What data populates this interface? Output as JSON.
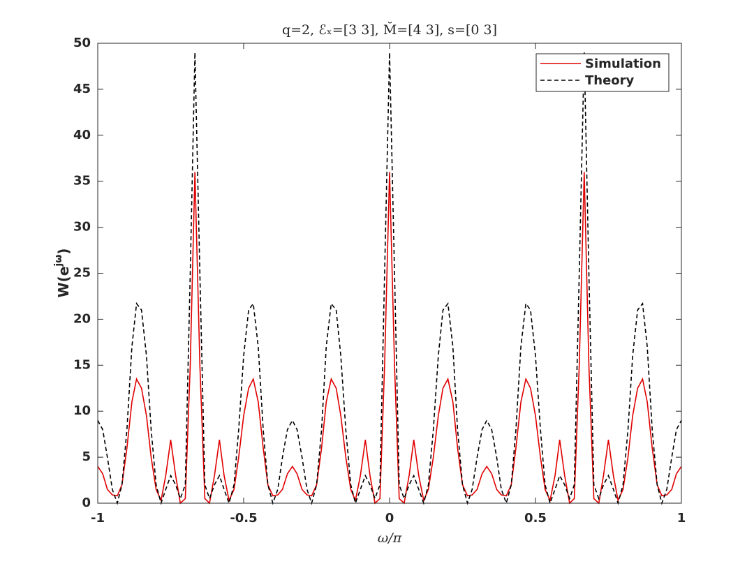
{
  "chart_data": {
    "type": "line",
    "title": "q=2, ℰₓ=[3 3], M̆=[4 3], s=[0 3]",
    "xlabel": "ω/π",
    "ylabel": {
      "base": "W(e",
      "sup": "jω",
      "close": ")"
    },
    "x": [
      -1,
      -0.983,
      -0.967,
      -0.95,
      -0.933,
      -0.917,
      -0.9,
      -0.883,
      -0.867,
      -0.85,
      -0.833,
      -0.817,
      -0.8,
      -0.783,
      -0.767,
      -0.75,
      -0.733,
      -0.717,
      -0.7,
      -0.683,
      -0.667,
      -0.65,
      -0.633,
      -0.617,
      -0.6,
      -0.583,
      -0.567,
      -0.55,
      -0.533,
      -0.517,
      -0.5,
      -0.483,
      -0.467,
      -0.45,
      -0.433,
      -0.417,
      -0.4,
      -0.383,
      -0.367,
      -0.35,
      -0.333,
      -0.317,
      -0.3,
      -0.283,
      -0.267,
      -0.25,
      -0.233,
      -0.217,
      -0.2,
      -0.183,
      -0.167,
      -0.15,
      -0.133,
      -0.117,
      -0.1,
      -0.083,
      -0.067,
      -0.05,
      -0.033,
      -0.017,
      0,
      0.017,
      0.033,
      0.05,
      0.067,
      0.083,
      0.1,
      0.117,
      0.133,
      0.15,
      0.167,
      0.183,
      0.2,
      0.217,
      0.233,
      0.25,
      0.267,
      0.283,
      0.3,
      0.317,
      0.333,
      0.35,
      0.367,
      0.383,
      0.4,
      0.417,
      0.433,
      0.45,
      0.467,
      0.483,
      0.5,
      0.517,
      0.533,
      0.55,
      0.567,
      0.583,
      0.6,
      0.617,
      0.633,
      0.65,
      0.667,
      0.683,
      0.7,
      0.717,
      0.733,
      0.75,
      0.767,
      0.783,
      0.8,
      0.817,
      0.833,
      0.85,
      0.867,
      0.883,
      0.9,
      0.917,
      0.933,
      0.95,
      0.967,
      0.983,
      1
    ],
    "series": [
      {
        "name": "Simulation",
        "color": "#e00000",
        "dash": "solid",
        "values": [
          4,
          3.2,
          1.5,
          0.9,
          0.8,
          2,
          6,
          11,
          13.5,
          12.5,
          9.5,
          5,
          1.5,
          0.3,
          3,
          6.9,
          3,
          0,
          0.5,
          15,
          36,
          15,
          0.5,
          0,
          3,
          6.9,
          3,
          0.3,
          1.5,
          5,
          9.5,
          12.5,
          13.5,
          11,
          6,
          2,
          0.8,
          0.9,
          1.5,
          3.2,
          4,
          3.2,
          1.5,
          0.9,
          0.8,
          2,
          6,
          11,
          13.5,
          12.5,
          9.5,
          5,
          1.5,
          0.3,
          3,
          6.9,
          3,
          0,
          0.5,
          15,
          36,
          15,
          0.5,
          0,
          3,
          6.9,
          3,
          0.3,
          1.5,
          5,
          9.5,
          12.5,
          13.5,
          11,
          6,
          2,
          0.8,
          0.9,
          1.5,
          3.2,
          4,
          3.2,
          1.5,
          0.9,
          0.8,
          2,
          6,
          11,
          13.5,
          12.5,
          9.5,
          5,
          1.5,
          0.3,
          3,
          6.9,
          3,
          0,
          0.5,
          15,
          36,
          15,
          0.5,
          0,
          3,
          6.9,
          3,
          0.3,
          1.5,
          5,
          9.5,
          12.5,
          13.5,
          11,
          6,
          2,
          0.8,
          0.9,
          1.5,
          3.2,
          4
        ]
      },
      {
        "name": "Theory",
        "color": "#000000",
        "dash": "dashed",
        "values": [
          9,
          8,
          5,
          1.5,
          0,
          2,
          8,
          17,
          21.7,
          21,
          16,
          8,
          2,
          0,
          1.5,
          3,
          2,
          0.5,
          2,
          25,
          49,
          25,
          2,
          0.5,
          2,
          3,
          1.5,
          0,
          2,
          8,
          16,
          21,
          21.7,
          17,
          8,
          2,
          0,
          1.5,
          5,
          8,
          9,
          8,
          5,
          1.5,
          0,
          2,
          8,
          17,
          21.7,
          21,
          16,
          8,
          2,
          0,
          1.5,
          3,
          2,
          0.5,
          2,
          25,
          49,
          25,
          2,
          0.5,
          2,
          3,
          1.5,
          0,
          2,
          8,
          16,
          21,
          21.7,
          17,
          8,
          2,
          0,
          1.5,
          5,
          8,
          9,
          8,
          5,
          1.5,
          0,
          2,
          8,
          17,
          21.7,
          21,
          16,
          8,
          2,
          0,
          1.5,
          3,
          2,
          0.5,
          2,
          25,
          49,
          25,
          2,
          0.5,
          2,
          3,
          1.5,
          0,
          2,
          8,
          16,
          21,
          21.7,
          17,
          8,
          2,
          0,
          1.5,
          5,
          8,
          9
        ]
      }
    ],
    "xlim": [
      -1,
      1
    ],
    "xticks": [
      -1,
      -0.5,
      0,
      0.5,
      1
    ],
    "ylim": [
      0,
      50
    ],
    "yticks": [
      0,
      5,
      10,
      15,
      20,
      25,
      30,
      35,
      40,
      45,
      50
    ],
    "grid": false,
    "legend": "northeast"
  }
}
